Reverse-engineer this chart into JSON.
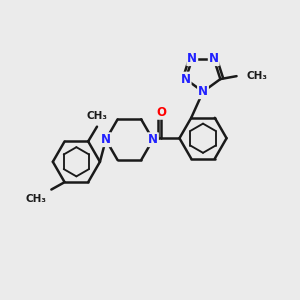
{
  "background_color": "#ebebeb",
  "bond_color": "#1a1a1a",
  "N_color": "#2020ff",
  "O_color": "#ff0000",
  "C_color": "#1a1a1a",
  "bond_width": 1.8,
  "font_size_atom": 8.5,
  "font_size_methyl": 7.5,
  "xlim": [
    0,
    10
  ],
  "ylim": [
    0,
    10
  ]
}
